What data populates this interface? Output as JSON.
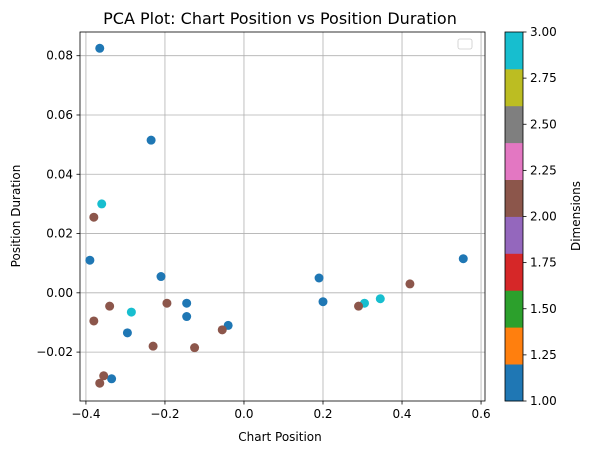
{
  "chart_data": {
    "type": "scatter",
    "title": "PCA Plot: Chart Position vs Position Duration",
    "xlabel": "Chart Position",
    "ylabel": "Position Duration",
    "xlim": [
      -0.415,
      0.61
    ],
    "ylim": [
      -0.0365,
      0.088
    ],
    "grid": true,
    "legend": "top-right (empty)",
    "xticks": [
      -0.4,
      -0.2,
      0.0,
      0.2,
      0.4,
      0.6
    ],
    "xtick_labels": [
      "−0.4",
      "−0.2",
      "0.0",
      "0.2",
      "0.4",
      "0.6"
    ],
    "yticks": [
      -0.02,
      0.0,
      0.02,
      0.04,
      0.06,
      0.08
    ],
    "ytick_labels": [
      "−0.02",
      "0.00",
      "0.02",
      "0.04",
      "0.06",
      "0.08"
    ],
    "colorbar": {
      "label": "Dimensions",
      "range": [
        1.0,
        3.0
      ],
      "colormap": "tab10",
      "colors": [
        "#1f77b4",
        "#ff7f0e",
        "#2ca02c",
        "#d62728",
        "#9467bd",
        "#8c564b",
        "#e377c2",
        "#7f7f7f",
        "#bcbd22",
        "#17becf"
      ],
      "ticks": [
        1.0,
        1.25,
        1.5,
        1.75,
        2.0,
        2.25,
        2.5,
        2.75,
        3.0
      ],
      "tick_labels": [
        "1.00",
        "1.25",
        "1.50",
        "1.75",
        "2.00",
        "2.25",
        "2.50",
        "2.75",
        "3.00"
      ]
    },
    "points": [
      {
        "x": -0.365,
        "y": 0.0825,
        "dim": 1
      },
      {
        "x": -0.235,
        "y": 0.0515,
        "dim": 1
      },
      {
        "x": -0.39,
        "y": 0.011,
        "dim": 1
      },
      {
        "x": -0.21,
        "y": 0.0055,
        "dim": 1
      },
      {
        "x": -0.145,
        "y": -0.0035,
        "dim": 1
      },
      {
        "x": -0.145,
        "y": -0.008,
        "dim": 1
      },
      {
        "x": -0.295,
        "y": -0.0135,
        "dim": 1
      },
      {
        "x": -0.04,
        "y": -0.011,
        "dim": 1
      },
      {
        "x": -0.335,
        "y": -0.029,
        "dim": 1
      },
      {
        "x": 0.19,
        "y": 0.005,
        "dim": 1
      },
      {
        "x": 0.2,
        "y": -0.003,
        "dim": 1
      },
      {
        "x": 0.555,
        "y": 0.0115,
        "dim": 1
      },
      {
        "x": -0.36,
        "y": 0.03,
        "dim": 3
      },
      {
        "x": -0.285,
        "y": -0.0065,
        "dim": 3
      },
      {
        "x": 0.305,
        "y": -0.0035,
        "dim": 3
      },
      {
        "x": 0.345,
        "y": -0.002,
        "dim": 3
      },
      {
        "x": -0.38,
        "y": 0.0255,
        "dim": 2
      },
      {
        "x": -0.34,
        "y": -0.0045,
        "dim": 2
      },
      {
        "x": -0.195,
        "y": -0.0035,
        "dim": 2
      },
      {
        "x": -0.38,
        "y": -0.0095,
        "dim": 2
      },
      {
        "x": -0.23,
        "y": -0.018,
        "dim": 2
      },
      {
        "x": -0.125,
        "y": -0.0185,
        "dim": 2
      },
      {
        "x": -0.055,
        "y": -0.0125,
        "dim": 2
      },
      {
        "x": -0.355,
        "y": -0.028,
        "dim": 2
      },
      {
        "x": -0.365,
        "y": -0.0305,
        "dim": 2
      },
      {
        "x": 0.29,
        "y": -0.0045,
        "dim": 2
      },
      {
        "x": 0.42,
        "y": 0.003,
        "dim": 2
      }
    ]
  }
}
